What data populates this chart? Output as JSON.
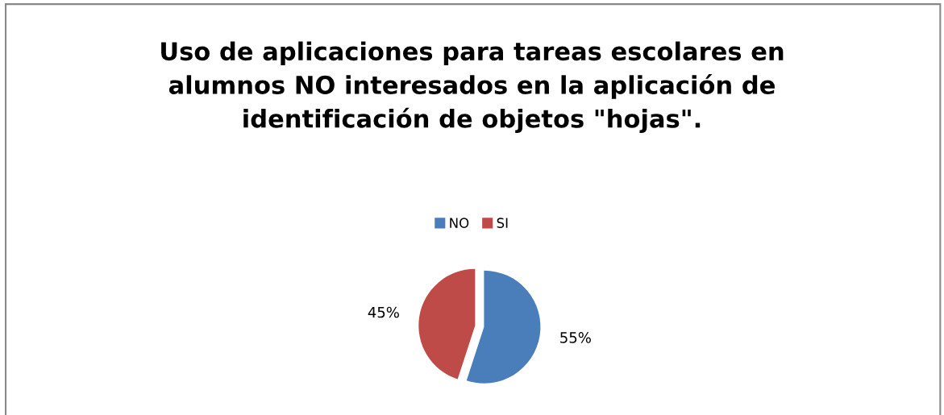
{
  "chart_data": {
    "type": "pie",
    "title": "Uso de aplicaciones para tareas escolares en alumnos NO interesados en la aplicación de identificación de objetos \"hojas\".",
    "categories": [
      "NO",
      "SI"
    ],
    "values": [
      55,
      45
    ],
    "value_labels": [
      "55%",
      "45%"
    ],
    "colors": [
      "#4a7ebb",
      "#be4b48"
    ],
    "legend": "top"
  }
}
